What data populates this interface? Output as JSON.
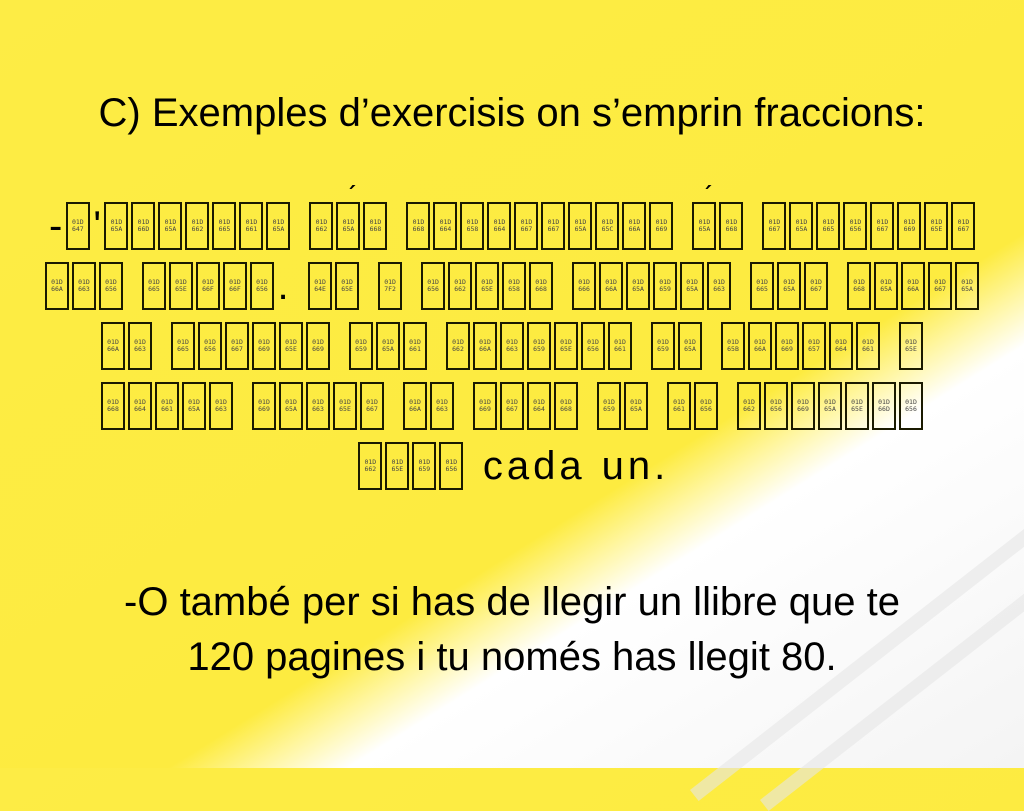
{
  "slide": {
    "title": "C) Exemples d’exercisis on s’emprin fraccions:",
    "paragraph1_lines": [
      "-L'exemple més socorregut és repartir",
      "una pizza. Si 6 amics queden per seure",
      "un partit del mundial de futbol i",
      "solen tenir un tros de la mateixa",
      "mida| cada un."
    ],
    "paragraph2_line1": "-O també per si has de llegir un llibre que te",
    "paragraph2_line2": "120 pagines i tu només has llegit 80.",
    "colors": {
      "background": "#fdeb40",
      "corner": "#ffffff",
      "text": "#000000"
    }
  }
}
